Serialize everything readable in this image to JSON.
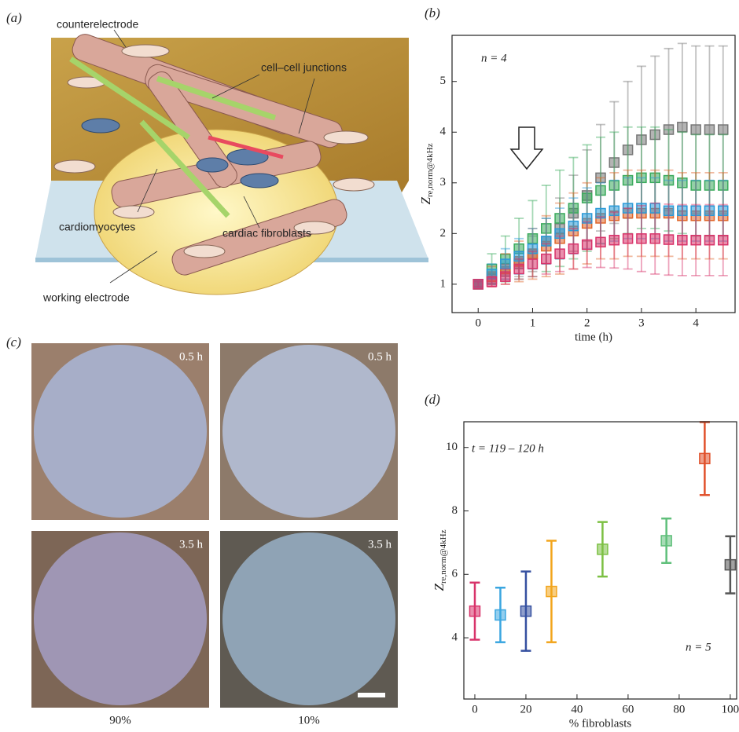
{
  "illustration": {
    "panel_label": "(a)",
    "labels": [
      "counterelectrode",
      "cell–cell junctions",
      "cardiomyocytes",
      "cardiac fibroblasts",
      "working electrode"
    ]
  },
  "micrographs": {
    "panel_label": "(c)",
    "times": [
      "0.5 h",
      "0.5 h",
      "3.5 h",
      "3.5 h"
    ],
    "columns": [
      "90%",
      "10%"
    ]
  },
  "chart_data": [
    {
      "type": "errorbar",
      "panel_label": "(b)",
      "xlabel": "time (h)",
      "ylabel": {
        "main": "Z",
        "sub": "re,norm@4kHz"
      },
      "annotation": "n = 4",
      "x": [
        0,
        0.25,
        0.5,
        0.75,
        1,
        1.25,
        1.5,
        1.75,
        2,
        2.25,
        2.5,
        2.75,
        3,
        3.25,
        3.5,
        3.75,
        4,
        4.25,
        4.5
      ],
      "xlim": [
        -0.48,
        4.72
      ],
      "ylim": [
        0.44,
        5.91
      ],
      "xticks": [
        0,
        1,
        2,
        3,
        4
      ],
      "yticks": [
        1,
        2,
        3,
        4,
        5
      ],
      "series": [
        {
          "color": "#777777",
          "values": [
            1.0,
            1.1,
            1.25,
            1.4,
            1.6,
            1.85,
            2.1,
            2.4,
            2.75,
            3.1,
            3.4,
            3.65,
            3.85,
            3.95,
            4.05,
            4.1,
            4.05,
            4.05,
            4.05
          ],
          "errors": [
            0.05,
            0.1,
            0.15,
            0.25,
            0.35,
            0.45,
            0.6,
            0.75,
            0.9,
            1.05,
            1.2,
            1.35,
            1.45,
            1.55,
            1.6,
            1.65,
            1.65,
            1.65,
            1.65
          ]
        },
        {
          "color": "#3aaa5c",
          "values": [
            1.0,
            1.3,
            1.5,
            1.7,
            1.9,
            2.1,
            2.3,
            2.5,
            2.7,
            2.85,
            2.95,
            3.05,
            3.1,
            3.1,
            3.05,
            3.0,
            2.95,
            2.95,
            2.95
          ],
          "errors": [
            0.05,
            0.3,
            0.45,
            0.6,
            0.75,
            0.85,
            0.95,
            1.0,
            1.05,
            1.05,
            1.05,
            1.05,
            1.0,
            1.0,
            1.0,
            1.0,
            1.0,
            1.0,
            1.0
          ]
        },
        {
          "color": "#e0662a",
          "values": [
            1.0,
            1.15,
            1.3,
            1.45,
            1.6,
            1.75,
            1.9,
            2.05,
            2.2,
            2.3,
            2.35,
            2.4,
            2.4,
            2.4,
            2.4,
            2.35,
            2.35,
            2.35,
            2.35
          ],
          "errors": [
            0.05,
            0.2,
            0.3,
            0.4,
            0.5,
            0.6,
            0.7,
            0.75,
            0.8,
            0.8,
            0.85,
            0.85,
            0.85,
            0.85,
            0.85,
            0.85,
            0.85,
            0.85,
            0.85
          ]
        },
        {
          "color": "#2a9ad8",
          "values": [
            1.0,
            1.2,
            1.4,
            1.55,
            1.7,
            1.85,
            2.0,
            2.15,
            2.3,
            2.4,
            2.45,
            2.5,
            2.5,
            2.5,
            2.45,
            2.45,
            2.45,
            2.45,
            2.45
          ],
          "errors": [
            0.05,
            0.2,
            0.3,
            0.35,
            0.4,
            0.45,
            0.5,
            0.55,
            0.6,
            0.6,
            0.6,
            0.6,
            0.6,
            0.6,
            0.6,
            0.6,
            0.6,
            0.6,
            0.6
          ]
        },
        {
          "color": "#d8336a",
          "values": [
            1.0,
            1.05,
            1.15,
            1.3,
            1.4,
            1.5,
            1.6,
            1.7,
            1.78,
            1.83,
            1.87,
            1.9,
            1.9,
            1.9,
            1.88,
            1.87,
            1.87,
            1.87,
            1.87
          ],
          "errors": [
            0.05,
            0.1,
            0.15,
            0.2,
            0.25,
            0.3,
            0.35,
            0.4,
            0.45,
            0.5,
            0.55,
            0.6,
            0.65,
            0.7,
            0.7,
            0.7,
            0.7,
            0.7,
            0.7
          ]
        }
      ]
    },
    {
      "type": "errorbar",
      "panel_label": "(d)",
      "xlabel": "% fibroblasts",
      "ylabel": {
        "main": "Z",
        "sub": "re,norm@4kHz"
      },
      "annotation": "t = 119 – 120 h",
      "annotation2": "n = 5",
      "x": [
        0,
        10,
        20,
        30,
        50,
        75,
        90,
        100
      ],
      "values": [
        4.84,
        4.72,
        4.84,
        5.46,
        6.79,
        7.06,
        9.65,
        6.3
      ],
      "errors": [
        0.9,
        0.86,
        1.25,
        1.6,
        0.86,
        0.7,
        1.15,
        0.9
      ],
      "colors": [
        "#d8336a",
        "#3aa6e0",
        "#3550a0",
        "#f2a51c",
        "#7cc043",
        "#5fbf7a",
        "#e0502a",
        "#555555"
      ],
      "xlim": [
        -4.3,
        102.5
      ],
      "ylim": [
        2.07,
        10.81
      ],
      "xticks": [
        0,
        20,
        40,
        60,
        80,
        100
      ],
      "yticks": [
        4,
        6,
        8,
        10
      ]
    }
  ]
}
